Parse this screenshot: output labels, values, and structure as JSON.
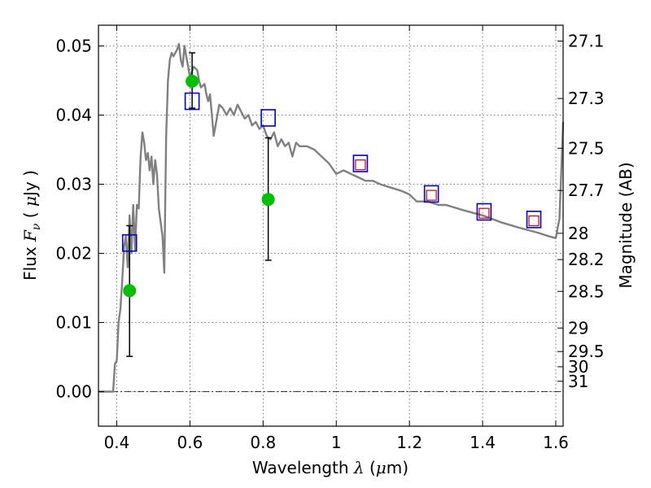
{
  "chart_data": {
    "type": "scatter",
    "xlabel": {
      "prefix": "Wavelength ",
      "symbol": "λ",
      "unit_open": " (",
      "unit_symbol": "μ",
      "unit_rest": "m)"
    },
    "ylabel": {
      "prefix": "Flux ",
      "symbol": "F",
      "subscript": "ν",
      "unit_open": " ( ",
      "unit_symbol": "μ",
      "unit_rest": "Jy )"
    },
    "y2label": "Magnitude (AB)",
    "xlim": [
      0.35,
      1.62
    ],
    "ylim": [
      -0.005,
      0.053
    ],
    "grid": true,
    "x_ticks": [
      {
        "value": 0.4,
        "label": "0.4"
      },
      {
        "value": 0.6,
        "label": "0.6"
      },
      {
        "value": 0.8,
        "label": "0.8"
      },
      {
        "value": 1.0,
        "label": "1"
      },
      {
        "value": 1.2,
        "label": "1.2"
      },
      {
        "value": 1.4,
        "label": "1.4"
      },
      {
        "value": 1.6,
        "label": "1.6"
      }
    ],
    "y_ticks": [
      {
        "value": 0.0,
        "label": "0.00"
      },
      {
        "value": 0.01,
        "label": "0.01"
      },
      {
        "value": 0.02,
        "label": "0.02"
      },
      {
        "value": 0.03,
        "label": "0.03"
      },
      {
        "value": 0.04,
        "label": "0.04"
      },
      {
        "value": 0.05,
        "label": "0.05"
      }
    ],
    "mag_ticks": [
      {
        "label": "27.1",
        "flux": 0.0507
      },
      {
        "label": "27.3",
        "flux": 0.0424
      },
      {
        "label": "27.5",
        "flux": 0.0352
      },
      {
        "label": "27.7",
        "flux": 0.0291
      },
      {
        "label": "28",
        "flux": 0.0229
      },
      {
        "label": "28.2",
        "flux": 0.0191
      },
      {
        "label": "28.5",
        "flux": 0.0145
      },
      {
        "label": "29",
        "flux": 0.0092
      },
      {
        "label": "29.5",
        "flux": 0.0058
      },
      {
        "label": "30",
        "flux": 0.0036
      },
      {
        "label": "31",
        "flux": 0.0015
      }
    ],
    "colors": {
      "model": "#808080",
      "observed": "#00bf00",
      "model_photometry": "#0000cc",
      "secondary": "#cc0000",
      "errorbar": "#000000",
      "grid": "#555555"
    },
    "series": [
      {
        "kind": "line",
        "points": [
          [
            0.35,
            0.0
          ],
          [
            0.386,
            0.0
          ],
          [
            0.39,
            0.0
          ],
          [
            0.395,
            0.004
          ],
          [
            0.4,
            0.0045
          ],
          [
            0.405,
            0.01
          ],
          [
            0.41,
            0.012
          ],
          [
            0.415,
            0.016
          ],
          [
            0.42,
            0.021
          ],
          [
            0.425,
            0.0225
          ],
          [
            0.43,
            0.018
          ],
          [
            0.435,
            0.0255
          ],
          [
            0.44,
            0.02
          ],
          [
            0.445,
            0.027
          ],
          [
            0.45,
            0.0205
          ],
          [
            0.455,
            0.027
          ],
          [
            0.46,
            0.0265
          ],
          [
            0.465,
            0.0338
          ],
          [
            0.47,
            0.0375
          ],
          [
            0.475,
            0.036
          ],
          [
            0.48,
            0.0335
          ],
          [
            0.485,
            0.0345
          ],
          [
            0.49,
            0.032
          ],
          [
            0.495,
            0.034
          ],
          [
            0.5,
            0.03
          ],
          [
            0.505,
            0.0335
          ],
          [
            0.51,
            0.0315
          ],
          [
            0.515,
            0.0265
          ],
          [
            0.52,
            0.0245
          ],
          [
            0.525,
            0.0225
          ],
          [
            0.53,
            0.0172
          ],
          [
            0.535,
            0.037
          ],
          [
            0.54,
            0.045
          ],
          [
            0.545,
            0.048
          ],
          [
            0.55,
            0.049
          ],
          [
            0.555,
            0.0485
          ],
          [
            0.56,
            0.049
          ],
          [
            0.565,
            0.0495
          ],
          [
            0.57,
            0.0503
          ],
          [
            0.575,
            0.048
          ],
          [
            0.58,
            0.047
          ],
          [
            0.585,
            0.05
          ],
          [
            0.59,
            0.0485
          ],
          [
            0.595,
            0.047
          ],
          [
            0.6,
            0.0455
          ],
          [
            0.61,
            0.047
          ],
          [
            0.62,
            0.0465
          ],
          [
            0.625,
            0.045
          ],
          [
            0.63,
            0.044
          ],
          [
            0.64,
            0.0445
          ],
          [
            0.645,
            0.043
          ],
          [
            0.65,
            0.042
          ],
          [
            0.655,
            0.043
          ],
          [
            0.66,
            0.04
          ],
          [
            0.665,
            0.037
          ],
          [
            0.67,
            0.0385
          ],
          [
            0.675,
            0.04
          ],
          [
            0.68,
            0.0415
          ],
          [
            0.69,
            0.041
          ],
          [
            0.7,
            0.04
          ],
          [
            0.71,
            0.041
          ],
          [
            0.72,
            0.04
          ],
          [
            0.73,
            0.0415
          ],
          [
            0.74,
            0.0405
          ],
          [
            0.75,
            0.0395
          ],
          [
            0.76,
            0.04
          ],
          [
            0.77,
            0.0385
          ],
          [
            0.78,
            0.039
          ],
          [
            0.79,
            0.038
          ],
          [
            0.8,
            0.0385
          ],
          [
            0.81,
            0.037
          ],
          [
            0.82,
            0.0365
          ],
          [
            0.83,
            0.0375
          ],
          [
            0.84,
            0.0355
          ],
          [
            0.85,
            0.0365
          ],
          [
            0.86,
            0.0355
          ],
          [
            0.87,
            0.036
          ],
          [
            0.88,
            0.034
          ],
          [
            0.89,
            0.036
          ],
          [
            0.9,
            0.0355
          ],
          [
            0.92,
            0.0355
          ],
          [
            0.94,
            0.035
          ],
          [
            0.96,
            0.034
          ],
          [
            0.98,
            0.033
          ],
          [
            1.0,
            0.0315
          ],
          [
            1.02,
            0.032
          ],
          [
            1.04,
            0.0315
          ],
          [
            1.06,
            0.031
          ],
          [
            1.08,
            0.0305
          ],
          [
            1.1,
            0.0305
          ],
          [
            1.12,
            0.03
          ],
          [
            1.15,
            0.0295
          ],
          [
            1.18,
            0.029
          ],
          [
            1.2,
            0.0285
          ],
          [
            1.22,
            0.0275
          ],
          [
            1.25,
            0.0275
          ],
          [
            1.28,
            0.027
          ],
          [
            1.3,
            0.027
          ],
          [
            1.35,
            0.0262
          ],
          [
            1.4,
            0.0255
          ],
          [
            1.45,
            0.0245
          ],
          [
            1.5,
            0.0237
          ],
          [
            1.55,
            0.023
          ],
          [
            1.58,
            0.0225
          ],
          [
            1.6,
            0.0222
          ],
          [
            1.61,
            0.025
          ],
          [
            1.615,
            0.032
          ],
          [
            1.62,
            0.039
          ]
        ]
      },
      {
        "kind": "points",
        "points": [
          {
            "x": 0.435,
            "y": 0.0146,
            "yerr_low": 0.0095,
            "yerr_high": 0.0094
          },
          {
            "x": 0.606,
            "y": 0.0449,
            "yerr_low": 0.0039,
            "yerr_high": 0.0041
          },
          {
            "x": 0.814,
            "y": 0.0278,
            "yerr_low": 0.0088,
            "yerr_high": 0.0089
          }
        ]
      },
      {
        "kind": "squares",
        "points": [
          {
            "x": 0.435,
            "y": 0.0215
          },
          {
            "x": 0.606,
            "y": 0.042
          },
          {
            "x": 0.814,
            "y": 0.0396
          },
          {
            "x": 1.066,
            "y": 0.033
          },
          {
            "x": 1.26,
            "y": 0.0286
          },
          {
            "x": 1.404,
            "y": 0.026
          },
          {
            "x": 1.54,
            "y": 0.0249
          }
        ]
      },
      {
        "kind": "small-squares",
        "points": [
          {
            "x": 1.066,
            "y": 0.0328
          },
          {
            "x": 1.26,
            "y": 0.0284
          },
          {
            "x": 1.404,
            "y": 0.0258
          },
          {
            "x": 1.54,
            "y": 0.0247
          }
        ]
      }
    ]
  }
}
